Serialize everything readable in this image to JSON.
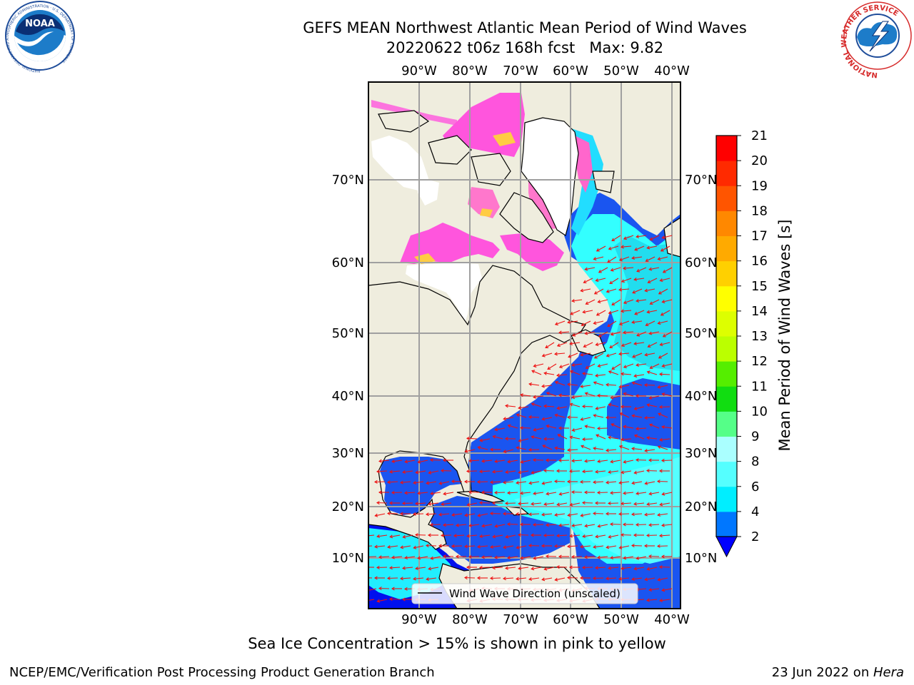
{
  "header": {
    "title_line1": "GEFS MEAN Northwest Atlantic Mean Period of Wind Waves",
    "title_line2": "20220622 t06z 168h fcst   Max: 9.82"
  },
  "logos": {
    "noaa_text": "NOAA",
    "noaa_ring_text": "NATIONAL OCEANIC AND ATMOSPHERIC ADMINISTRATION · U.S. DEPARTMENT OF COMMERCE",
    "nws_ring_text": "NATIONAL WEATHER SERVICE"
  },
  "map": {
    "lon_ticks": [
      "90°W",
      "80°W",
      "70°W",
      "60°W",
      "50°W",
      "40°W"
    ],
    "lat_ticks": [
      "70°N",
      "60°N",
      "50°N",
      "40°N",
      "30°N",
      "20°N",
      "10°N"
    ],
    "land_color": "#efedde",
    "ice_colors": [
      "#ff55dd",
      "#ff77cc",
      "#ffcc44"
    ],
    "legend_label": "Wind Wave Direction (unscaled)"
  },
  "colorbar": {
    "label": "Mean Period of Wind Waves [s]",
    "ticks": [
      "2",
      "4",
      "6",
      "8",
      "9",
      "10",
      "11",
      "12",
      "13",
      "14",
      "15",
      "16",
      "17",
      "18",
      "19",
      "20",
      "21"
    ],
    "colors": [
      "#0000ff",
      "#0077ff",
      "#00ddff",
      "#33ffff",
      "#88ffff",
      "#aaffee",
      "#55ff88",
      "#11ee22",
      "#44dd11",
      "#99ee00",
      "#ccff00",
      "#eeff00",
      "#ffff00",
      "#ffd000",
      "#ffaa00",
      "#ff8000",
      "#ff5500",
      "#ff2200",
      "#ff0000"
    ],
    "extend_color": "#0000ff"
  },
  "footer": {
    "caption": "Sea Ice Concentration > 15% is shown in pink to yellow",
    "left": "NCEP/EMC/Verification Post Processing Product Generation Branch",
    "right_date": "23 Jun 2022 on ",
    "right_machine": "Hera"
  }
}
